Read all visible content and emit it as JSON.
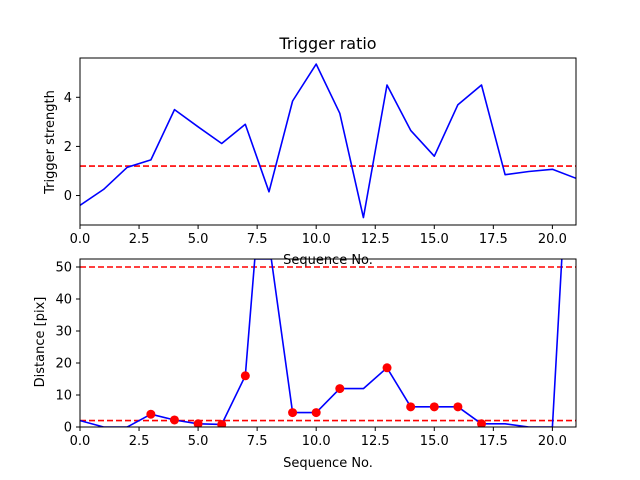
{
  "chart_data": [
    {
      "type": "line",
      "title": "Trigger ratio",
      "xlabel": "Sequence No.",
      "ylabel": "Trigger strength",
      "xlim": [
        0,
        21
      ],
      "ylim": [
        -1.2,
        5.6
      ],
      "xticks": [
        0.0,
        2.5,
        5.0,
        7.5,
        10.0,
        12.5,
        15.0,
        17.5,
        20.0
      ],
      "xtick_labels": [
        "0.0",
        "2.5",
        "5.0",
        "7.5",
        "10.0",
        "12.5",
        "15.0",
        "17.5",
        "20.0"
      ],
      "yticks": [
        0,
        2,
        4
      ],
      "ytick_labels": [
        "0",
        "2",
        "4"
      ],
      "grid": false,
      "series": [
        {
          "color": "#0000ff",
          "style": "solid",
          "x": [
            0,
            1,
            2,
            3,
            4,
            5,
            6,
            7,
            8,
            9,
            10,
            11,
            12,
            13,
            14,
            15,
            16,
            17,
            18,
            19,
            20,
            21
          ],
          "y": [
            -0.4,
            0.25,
            1.15,
            1.45,
            3.5,
            2.8,
            2.12,
            2.9,
            0.15,
            3.85,
            5.35,
            3.35,
            -0.9,
            4.5,
            2.65,
            1.6,
            3.7,
            4.5,
            0.85,
            0.98,
            1.07,
            0.7
          ]
        }
      ],
      "hlines": [
        {
          "y": 1.2,
          "color": "#ff0000",
          "style": "dashed"
        }
      ]
    },
    {
      "type": "line",
      "title": "",
      "xlabel": "Sequence No.",
      "ylabel": "Distance [pix]",
      "xlim": [
        0,
        21
      ],
      "ylim": [
        0,
        52.5
      ],
      "xticks": [
        0.0,
        2.5,
        5.0,
        7.5,
        10.0,
        12.5,
        15.0,
        17.5,
        20.0
      ],
      "xtick_labels": [
        "0.0",
        "2.5",
        "5.0",
        "7.5",
        "10.0",
        "12.5",
        "15.0",
        "17.5",
        "20.0"
      ],
      "yticks": [
        0,
        10,
        20,
        30,
        40,
        50
      ],
      "ytick_labels": [
        "0",
        "10",
        "20",
        "30",
        "40",
        "50"
      ],
      "grid": false,
      "series": [
        {
          "color": "#0000ff",
          "style": "solid",
          "x": [
            0,
            1,
            2,
            3,
            4,
            5,
            6,
            7,
            7.4,
            8.1,
            9,
            10,
            11,
            12,
            13,
            14,
            15,
            16,
            17,
            18,
            19,
            20,
            20.4
          ],
          "y": [
            2,
            0,
            0,
            4,
            2.2,
            1,
            0.8,
            16,
            52.5,
            52.5,
            4.5,
            4.5,
            12,
            12,
            18.5,
            6.3,
            6.3,
            6.3,
            1,
            1,
            0,
            0,
            52.5
          ]
        },
        {
          "color": "#ff0000",
          "style": "markers",
          "x": [
            3,
            4,
            5,
            6,
            7,
            9,
            10,
            11,
            13,
            14,
            15,
            16,
            17
          ],
          "y": [
            4,
            2.2,
            1,
            0.8,
            16,
            4.5,
            4.5,
            12,
            18.5,
            6.3,
            6.3,
            6.3,
            1
          ]
        }
      ],
      "hlines": [
        {
          "y": 50,
          "color": "#ff0000",
          "style": "dashed"
        },
        {
          "y": 2,
          "color": "#ff0000",
          "style": "dashed"
        }
      ]
    }
  ]
}
